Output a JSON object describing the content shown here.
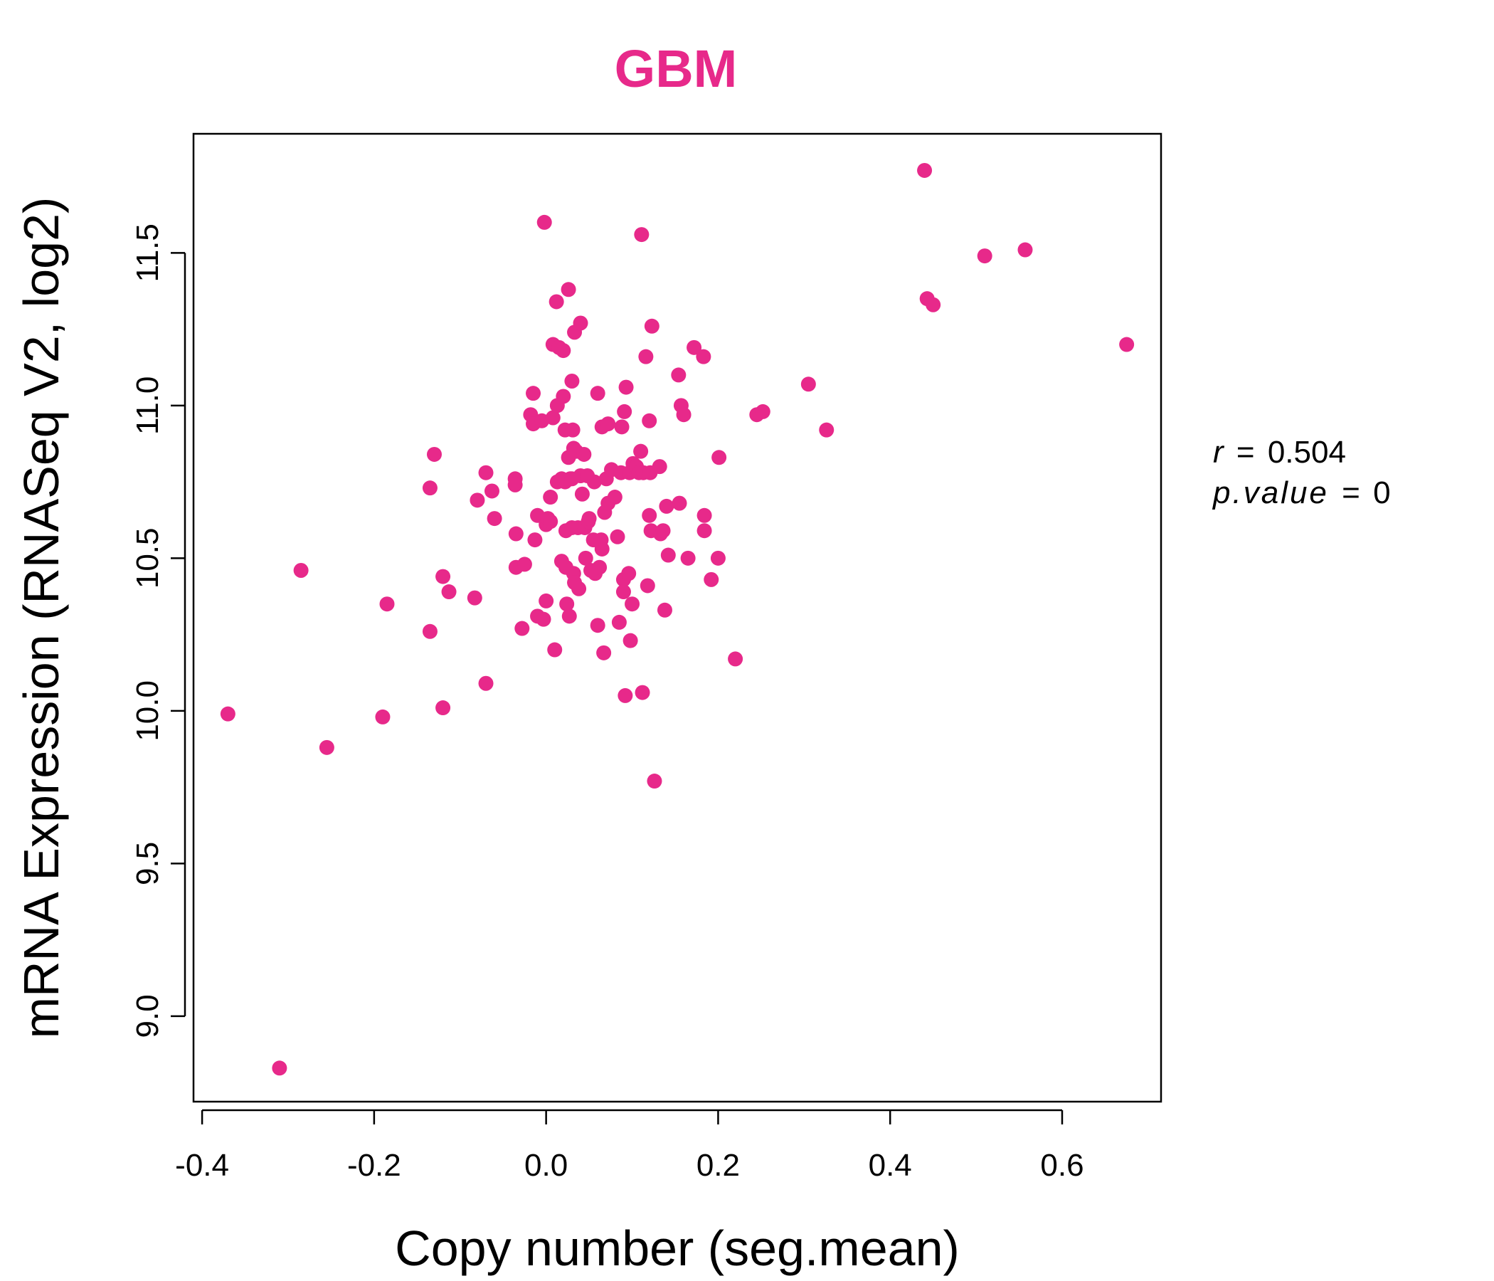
{
  "chart_data": {
    "type": "scatter",
    "title": "GBM",
    "xlabel": "Copy number (seg.mean)",
    "ylabel": "mRNA Expression (RNASeq V2, log2)",
    "xlim": [
      -0.41,
      0.715
    ],
    "ylim": [
      8.72,
      11.89
    ],
    "x_ticks": [
      -0.4,
      -0.2,
      0.0,
      0.2,
      0.4,
      0.6
    ],
    "x_tick_labels": [
      "-0.4",
      "-0.2",
      "0.0",
      "0.2",
      "0.4",
      "0.6"
    ],
    "y_ticks": [
      9.0,
      9.5,
      10.0,
      10.5,
      11.0,
      11.5
    ],
    "y_tick_labels": [
      "9.0",
      "9.5",
      "10.0",
      "10.5",
      "11.0",
      "11.5"
    ],
    "grid": false,
    "legend": "none",
    "series": [
      {
        "color": "#E7298A",
        "points": [
          [
            -0.37,
            9.99
          ],
          [
            -0.31,
            8.83
          ],
          [
            -0.285,
            10.46
          ],
          [
            -0.255,
            9.88
          ],
          [
            -0.19,
            9.98
          ],
          [
            -0.185,
            10.35
          ],
          [
            -0.135,
            10.26
          ],
          [
            -0.135,
            10.73
          ],
          [
            -0.13,
            10.84
          ],
          [
            -0.12,
            10.44
          ],
          [
            -0.12,
            10.01
          ],
          [
            -0.113,
            10.39
          ],
          [
            -0.083,
            10.37
          ],
          [
            -0.08,
            10.69
          ],
          [
            -0.07,
            10.78
          ],
          [
            -0.07,
            10.09
          ],
          [
            -0.063,
            10.72
          ],
          [
            -0.06,
            10.63
          ],
          [
            -0.036,
            10.76
          ],
          [
            -0.036,
            10.74
          ],
          [
            -0.035,
            10.58
          ],
          [
            -0.035,
            10.47
          ],
          [
            -0.028,
            10.27
          ],
          [
            -0.025,
            10.48
          ],
          [
            -0.018,
            10.97
          ],
          [
            -0.015,
            11.04
          ],
          [
            -0.015,
            10.94
          ],
          [
            -0.013,
            10.56
          ],
          [
            -0.01,
            10.64
          ],
          [
            -0.01,
            10.31
          ],
          [
            -0.005,
            10.95
          ],
          [
            -0.003,
            10.3
          ],
          [
            -0.002,
            11.6
          ],
          [
            0.0,
            10.61
          ],
          [
            0.0,
            10.36
          ],
          [
            0.002,
            10.63
          ],
          [
            0.005,
            10.62
          ],
          [
            0.005,
            10.7
          ],
          [
            0.008,
            10.96
          ],
          [
            0.008,
            11.2
          ],
          [
            0.01,
            10.2
          ],
          [
            0.012,
            11.34
          ],
          [
            0.013,
            11.0
          ],
          [
            0.013,
            10.75
          ],
          [
            0.015,
            11.19
          ],
          [
            0.018,
            10.49
          ],
          [
            0.018,
            10.76
          ],
          [
            0.02,
            11.18
          ],
          [
            0.02,
            11.03
          ],
          [
            0.022,
            10.92
          ],
          [
            0.022,
            10.75
          ],
          [
            0.023,
            10.59
          ],
          [
            0.023,
            10.47
          ],
          [
            0.024,
            10.35
          ],
          [
            0.026,
            11.38
          ],
          [
            0.026,
            10.83
          ],
          [
            0.027,
            10.31
          ],
          [
            0.028,
            10.76
          ],
          [
            0.03,
            11.08
          ],
          [
            0.03,
            10.76
          ],
          [
            0.03,
            10.6
          ],
          [
            0.031,
            10.92
          ],
          [
            0.032,
            10.86
          ],
          [
            0.032,
            10.45
          ],
          [
            0.033,
            11.24
          ],
          [
            0.033,
            10.42
          ],
          [
            0.035,
            10.85
          ],
          [
            0.037,
            10.6
          ],
          [
            0.038,
            10.4
          ],
          [
            0.04,
            11.27
          ],
          [
            0.04,
            10.77
          ],
          [
            0.042,
            10.71
          ],
          [
            0.044,
            10.84
          ],
          [
            0.045,
            10.6
          ],
          [
            0.046,
            10.5
          ],
          [
            0.048,
            10.77
          ],
          [
            0.049,
            10.62
          ],
          [
            0.05,
            10.63
          ],
          [
            0.052,
            10.46
          ],
          [
            0.055,
            10.56
          ],
          [
            0.056,
            10.75
          ],
          [
            0.057,
            10.45
          ],
          [
            0.06,
            11.04
          ],
          [
            0.06,
            10.28
          ],
          [
            0.062,
            10.47
          ],
          [
            0.064,
            10.56
          ],
          [
            0.065,
            10.53
          ],
          [
            0.065,
            10.93
          ],
          [
            0.067,
            10.19
          ],
          [
            0.068,
            10.65
          ],
          [
            0.07,
            10.76
          ],
          [
            0.072,
            10.94
          ],
          [
            0.072,
            10.68
          ],
          [
            0.076,
            10.79
          ],
          [
            0.08,
            10.7
          ],
          [
            0.083,
            10.57
          ],
          [
            0.085,
            10.29
          ],
          [
            0.087,
            10.78
          ],
          [
            0.088,
            10.93
          ],
          [
            0.09,
            10.43
          ],
          [
            0.09,
            10.39
          ],
          [
            0.091,
            10.98
          ],
          [
            0.092,
            10.05
          ],
          [
            0.093,
            11.06
          ],
          [
            0.096,
            10.45
          ],
          [
            0.097,
            10.78
          ],
          [
            0.098,
            10.23
          ],
          [
            0.1,
            10.35
          ],
          [
            0.101,
            10.81
          ],
          [
            0.105,
            10.8
          ],
          [
            0.108,
            10.78
          ],
          [
            0.11,
            10.85
          ],
          [
            0.111,
            11.56
          ],
          [
            0.112,
            10.06
          ],
          [
            0.113,
            10.78
          ],
          [
            0.116,
            11.16
          ],
          [
            0.118,
            10.41
          ],
          [
            0.12,
            10.64
          ],
          [
            0.12,
            10.95
          ],
          [
            0.121,
            10.78
          ],
          [
            0.122,
            10.59
          ],
          [
            0.123,
            11.26
          ],
          [
            0.126,
            9.77
          ],
          [
            0.132,
            10.8
          ],
          [
            0.133,
            10.58
          ],
          [
            0.136,
            10.59
          ],
          [
            0.138,
            10.33
          ],
          [
            0.14,
            10.67
          ],
          [
            0.142,
            10.51
          ],
          [
            0.154,
            11.1
          ],
          [
            0.155,
            10.68
          ],
          [
            0.157,
            11.0
          ],
          [
            0.16,
            10.97
          ],
          [
            0.165,
            10.5
          ],
          [
            0.172,
            11.19
          ],
          [
            0.183,
            11.16
          ],
          [
            0.184,
            10.64
          ],
          [
            0.184,
            10.59
          ],
          [
            0.192,
            10.43
          ],
          [
            0.2,
            10.5
          ],
          [
            0.201,
            10.83
          ],
          [
            0.22,
            10.17
          ],
          [
            0.245,
            10.97
          ],
          [
            0.252,
            10.98
          ],
          [
            0.305,
            11.07
          ],
          [
            0.326,
            10.92
          ],
          [
            0.44,
            11.77
          ],
          [
            0.443,
            11.35
          ],
          [
            0.45,
            11.33
          ],
          [
            0.51,
            11.49
          ],
          [
            0.557,
            11.51
          ],
          [
            0.675,
            11.2
          ]
        ]
      }
    ],
    "annotation": {
      "r_symbol": "r",
      "r_value": "0.504",
      "p_symbol": "p.value",
      "p_value": "0",
      "equals": "="
    }
  }
}
